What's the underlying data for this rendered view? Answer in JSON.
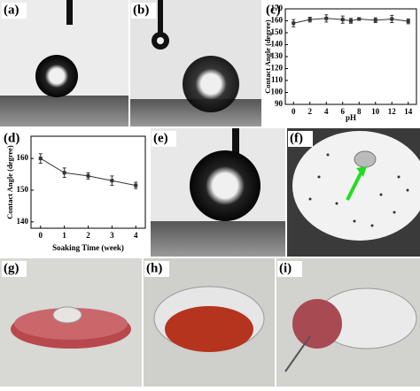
{
  "panel_labels": [
    "(a)",
    "(b)",
    "(c)",
    "(d)",
    "(e)",
    "(f)",
    "(g)",
    "(h)",
    "(i)"
  ],
  "chart_data": [
    {
      "type": "line",
      "x_label": "pH",
      "y_label": "Contact Angle (degree)",
      "x": [
        0,
        2,
        4,
        6,
        7,
        8,
        10,
        12,
        14
      ],
      "series": [
        {
          "color": "#333333",
          "values": [
            158,
            161,
            162,
            161,
            160,
            161.5,
            160.5,
            161.5,
            159.5
          ],
          "errors": [
            3,
            2,
            3,
            3,
            2,
            1,
            2,
            3,
            2
          ]
        }
      ],
      "xlim": [
        -1,
        15
      ],
      "xticks": [
        0,
        2,
        4,
        6,
        8,
        10,
        12,
        14
      ],
      "ylim": [
        90,
        170
      ],
      "yticks": [
        90,
        100,
        110,
        120,
        130,
        140,
        150,
        160,
        170
      ]
    },
    {
      "type": "line",
      "x_label": "Soaking Time (week)",
      "y_label": "Contact Angle (degree)",
      "x": [
        0,
        1,
        2,
        3,
        4
      ],
      "series": [
        {
          "color": "#333333",
          "values": [
            160,
            155.5,
            154.5,
            153,
            151.5
          ],
          "errors": [
            1.5,
            1.5,
            1,
            1.5,
            1
          ]
        }
      ],
      "xlim": [
        -0.4,
        4.4
      ],
      "xticks": [
        0,
        1,
        2,
        3,
        4
      ],
      "ylim": [
        138,
        167
      ],
      "yticks": [
        140,
        150,
        160
      ]
    }
  ]
}
